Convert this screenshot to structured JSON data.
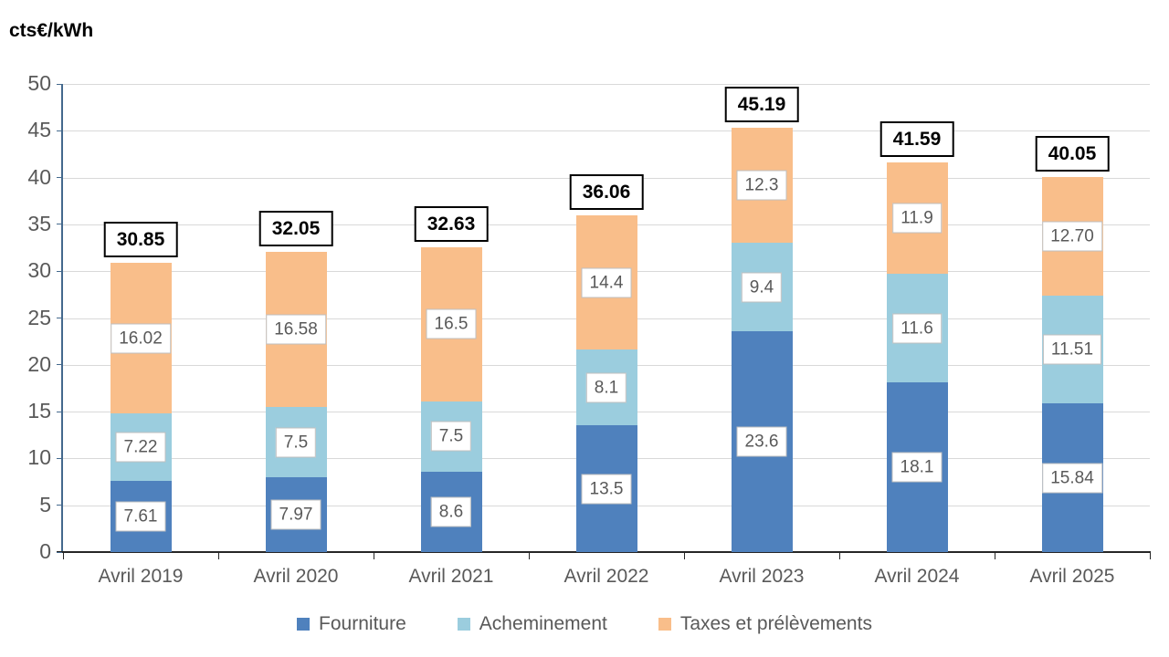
{
  "title": "cts€/kWh",
  "chart_data": {
    "type": "bar",
    "stacked": true,
    "title": "cts€/kWh",
    "categories": [
      "Avril 2019",
      "Avril 2020",
      "Avril 2021",
      "Avril 2022",
      "Avril 2023",
      "Avril 2024",
      "Avril 2025"
    ],
    "series": [
      {
        "name": "Fourniture",
        "color": "#4f81bd",
        "values": [
          7.61,
          7.97,
          8.6,
          13.5,
          23.6,
          18.1,
          15.84
        ],
        "labels": [
          "7.61",
          "7.97",
          "8.6",
          "13.5",
          "23.6",
          "18.1",
          "15.84"
        ]
      },
      {
        "name": "Acheminement",
        "color": "#9bcdde",
        "values": [
          7.22,
          7.5,
          7.5,
          8.1,
          9.4,
          11.6,
          11.51
        ],
        "labels": [
          "7.22",
          "7.5",
          "7.5",
          "8.1",
          "9.4",
          "11.6",
          "11.51"
        ]
      },
      {
        "name": "Taxes et prélèvements",
        "color": "#f9be8a",
        "values": [
          16.02,
          16.58,
          16.5,
          14.4,
          12.3,
          11.9,
          12.7
        ],
        "labels": [
          "16.02",
          "16.58",
          "16.5",
          "14.4",
          "12.3",
          "11.9",
          "12.70"
        ]
      }
    ],
    "totals": [
      "30.85",
      "32.05",
      "32.63",
      "36.06",
      "45.19",
      "41.59",
      "40.05"
    ],
    "ylim": [
      0,
      50
    ],
    "yticks": [
      "0",
      "5",
      "10",
      "15",
      "20",
      "25",
      "30",
      "35",
      "40",
      "45",
      "50"
    ],
    "grid": true,
    "legend_position": "bottom",
    "colors": {
      "gridline": "#d9d9d9",
      "y_axis": "#44698d",
      "x_axis": "#262626",
      "tick_label": "#595959",
      "segment_label_text": "#595959",
      "segment_label_border": "#bfbfbf",
      "total_label_text": "#000000",
      "total_label_border": "#000000"
    }
  }
}
